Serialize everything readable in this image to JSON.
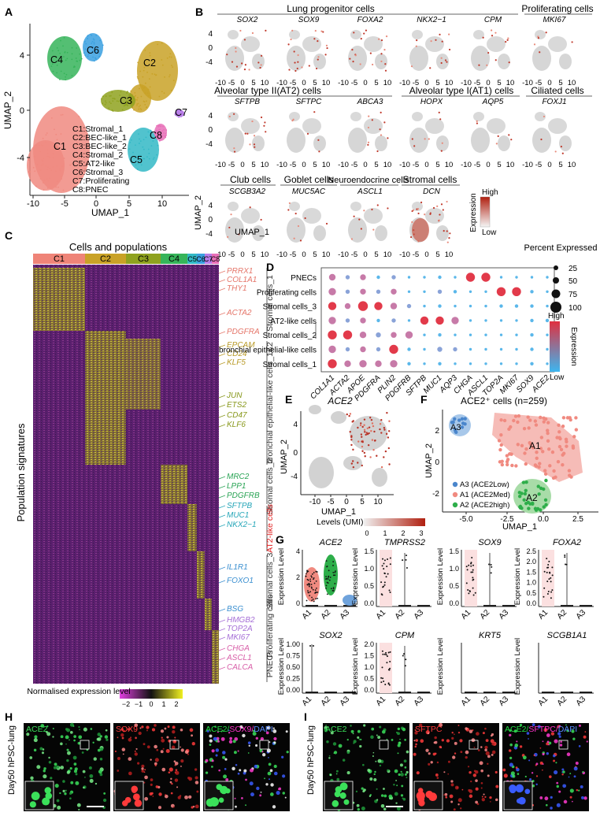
{
  "figure": {
    "panels": {
      "A": "A",
      "B": "B",
      "C": "C",
      "D": "D",
      "E": "E",
      "F": "F",
      "G": "G",
      "H": "H",
      "I": "I"
    }
  },
  "panelA": {
    "xlabel": "UMAP_1",
    "ylabel": "UMAP_2",
    "xticks": [
      "-10",
      "-5",
      "0",
      "5",
      "10"
    ],
    "yticks": [
      "4",
      "0",
      "-4"
    ],
    "cluster_labels": [
      "C1",
      "C2",
      "C3",
      "C4",
      "C5",
      "C6",
      "C7",
      "C8"
    ],
    "legend": [
      "C1:Stromal_1",
      "C2:BEC-like_1",
      "C3:BEC-like_2",
      "C4:Stromal_2",
      "C5:AT2-like",
      "C6:Stromal_3",
      "C7:Proliferating",
      "C8:PNEC"
    ],
    "colors": [
      "#f08a80",
      "#c9a227",
      "#8fa21f",
      "#36b45a",
      "#32b9c6",
      "#3aa0e0",
      "#b77ce8",
      "#e86fb7"
    ]
  },
  "panelB": {
    "groups": [
      "Lung progenitor cells",
      "Proliferating cells",
      "Alveolar type II(AT2) cells",
      "Alveolar type I(AT1) cells",
      "Ciliated cells",
      "Club cells",
      "Goblet  cells",
      "Neuroendocrine cells",
      "Stromal cells"
    ],
    "genes": [
      "SOX2",
      "SOX9",
      "FOXA2",
      "NKX2−1",
      "CPM",
      "MKI67",
      "SFTPB",
      "SFTPC",
      "ABCA3",
      "HOPX",
      "AQP5",
      "FOXJ1",
      "SCGB3A2",
      "MUC5AC",
      "ASCL1",
      "DCN"
    ],
    "xticks": [
      "-10",
      "-5",
      "0",
      "5",
      "10"
    ],
    "yticks": [
      "4",
      "0",
      "-4"
    ],
    "xlabel": "UMAP_1",
    "ylabel": "UMAP_2",
    "legend_title": "Expression",
    "legend_high": "High",
    "legend_low": "Low"
  },
  "panelC": {
    "title": "Cells and populations",
    "columns": [
      "C1",
      "C2",
      "C3",
      "C4",
      "C5",
      "C6",
      "C7",
      "C8"
    ],
    "ylabel": "Population signatures",
    "genes": [
      "PRRX1",
      "COL1A1",
      "THY1",
      "ACTA2",
      "PDGFRA",
      "EPCAM",
      "CD24",
      "KLF5",
      "JUN",
      "ETS2",
      "CD47",
      "KLF6",
      "MRC2",
      "LPP1",
      "PDGFRB",
      "SFTPB",
      "MUC1",
      "NKX2−1",
      "IL1R1",
      "FOXO1",
      "BSG",
      "HMGB2",
      "TOP2A",
      "MKI67",
      "CHGA",
      "ASCL1",
      "CALCA"
    ],
    "groups": [
      "Stromal cells_1",
      "bronchial epithelial-like cells_1&2",
      "Stromal cells_2",
      "AT2-like cells",
      "Stromal cells_3",
      "Proliferating cells",
      "PNECs"
    ],
    "legend_title": "Normalised expression level",
    "legend_ticks": [
      "−2",
      "−1",
      "0",
      "1",
      "2"
    ]
  },
  "panelD": {
    "rows": [
      "PNECs",
      "Proliferating cells",
      "Stromal cells_3",
      "AT2-like cells",
      "Stromal cells_2",
      "bronchial epithelial-like cells",
      "Stromal cells_1"
    ],
    "genes": [
      "COL1A1",
      "ACTA2",
      "APOE",
      "PDGFRA",
      "PLIN2",
      "PDGFRB",
      "SFTPB",
      "MUC1",
      "AQP3",
      "CHGA",
      "ASCL1",
      "TOP2A",
      "MKI67",
      "SOX9",
      "ACE2"
    ],
    "size_title": "Percent Expressed",
    "sizes": [
      "25",
      "50",
      "75",
      "100"
    ],
    "color_title": "Expression",
    "high": "High",
    "low": "Low"
  },
  "panelE": {
    "title": "ACE2",
    "xlabel": "UMAP_1",
    "ylabel": "UMAP_2",
    "xticks": [
      "-10",
      "-5",
      "0",
      "5",
      "10"
    ],
    "yticks": [
      "4",
      "0",
      "-4"
    ],
    "legend_title": "Levels (UMI)",
    "legend_ticks": [
      "0",
      "1",
      "2",
      "3"
    ]
  },
  "panelF": {
    "title": "ACE2⁺ cells (n=259)",
    "xlabel": "UMAP_1",
    "ylabel": "UMAP_2",
    "xticks": [
      "-5.0",
      "-2.5",
      "0.0",
      "2.5"
    ],
    "yticks": [
      "2",
      "0",
      "-2"
    ],
    "clusters": [
      "A3",
      "A1",
      "A2"
    ],
    "legend": [
      "A3 (ACE2Low)",
      "A1 (ACE2Med)",
      "A2 (ACE2high)"
    ]
  },
  "panelG": {
    "ylabel": "Expression Level",
    "xticks": [
      "A1",
      "A2",
      "A3"
    ],
    "genes": [
      "ACE2",
      "TMPRSS2",
      "SOX9",
      "FOXA2",
      "SOX2",
      "CPM",
      "KRT5",
      "SCGB1A1"
    ],
    "yticks": [
      [
        "0",
        "2",
        "4"
      ],
      [
        "0.0",
        "0.5",
        "1.0",
        "1.5"
      ],
      [
        "0.0",
        "0.5",
        "1.0",
        "1.5"
      ],
      [
        "0.0",
        "0.5",
        "1.0",
        "1.5",
        "2.0",
        "2.5"
      ],
      [
        "0.00",
        "0.25",
        "0.50",
        "0.75",
        "1.00"
      ],
      [
        "0.0",
        "0.5",
        "1.0",
        "1.5",
        "2.0"
      ],
      [],
      []
    ]
  },
  "panelH": {
    "side_label": "Day50 hPSC-lung",
    "channels": [
      "ACE2",
      "SOX9",
      "ACE2/SOX9/DAPI"
    ]
  },
  "panelI": {
    "side_label": "Day50 hPSC-lung",
    "channels": [
      "ACE2",
      "SFTPC",
      "ACE2/SFTPC/DAPI"
    ]
  }
}
